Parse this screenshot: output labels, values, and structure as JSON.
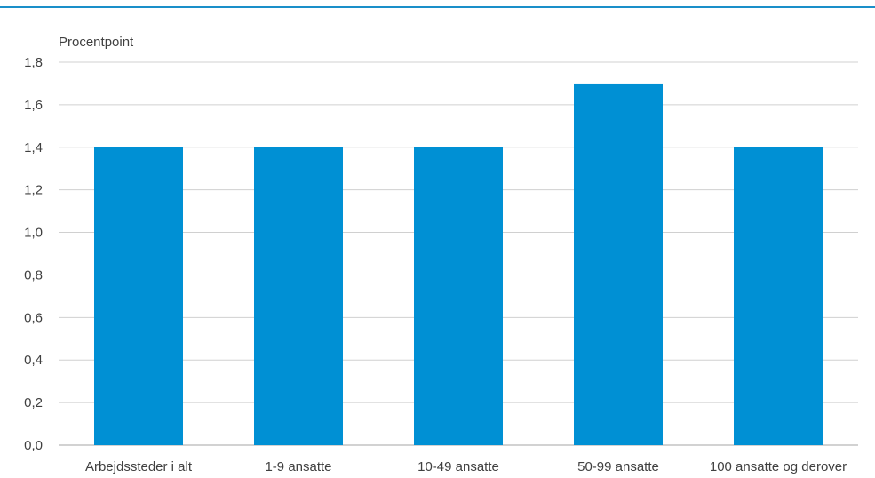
{
  "header": {
    "title_fragment": ""
  },
  "chart_data": {
    "type": "bar",
    "unit_label": "Procentpoint",
    "categories": [
      "Arbejdssteder i alt",
      "1-9 ansatte",
      "10-49 ansatte",
      "50-99 ansatte",
      "100 ansatte og derover"
    ],
    "values": [
      1.4,
      1.4,
      1.4,
      1.7,
      1.4
    ],
    "ylim": [
      0,
      1.8
    ],
    "yticks": [
      0.0,
      0.2,
      0.4,
      0.6,
      0.8,
      1.0,
      1.2,
      1.4,
      1.6,
      1.8
    ],
    "ytick_labels": [
      "0,0",
      "0,2",
      "0,4",
      "0,6",
      "0,8",
      "1,0",
      "1,2",
      "1,4",
      "1,6",
      "1,8"
    ],
    "grid": true,
    "bar_color": "#0090d4",
    "grid_color": "#d0d0d0",
    "header_rule_color": "#1a8fc9"
  }
}
